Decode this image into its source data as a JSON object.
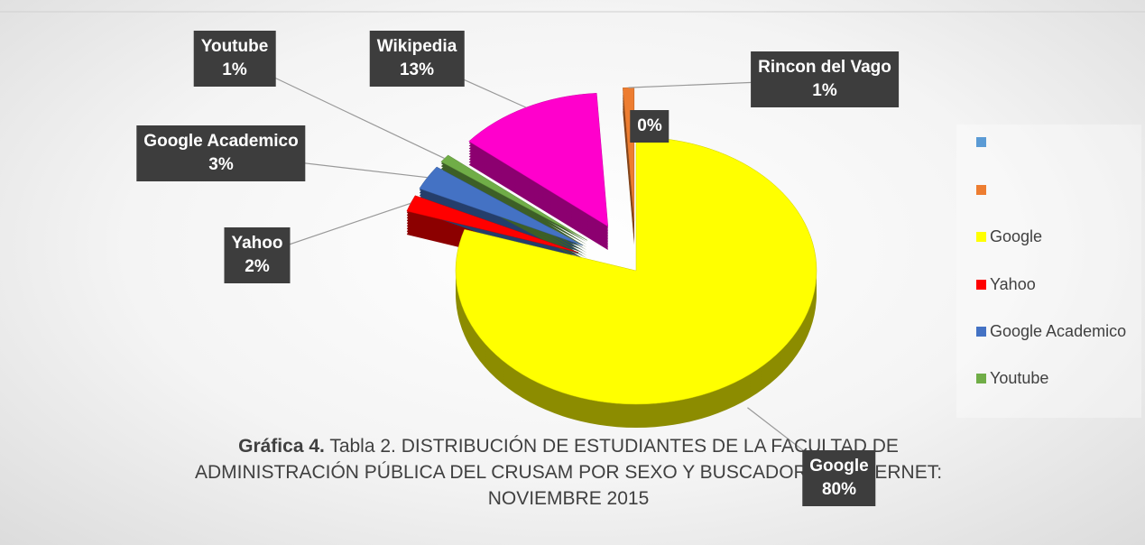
{
  "chart_data": {
    "type": "pie",
    "categories": [
      null,
      "Google",
      "Yahoo",
      "Google Academico",
      "Youtube",
      "Wikipedia",
      "Rincon del Vago"
    ],
    "values": [
      0,
      80,
      2,
      3,
      1,
      13,
      1
    ],
    "value_labels": [
      "0%",
      "80%",
      "2%",
      "3%",
      "1%",
      "13%",
      "1%"
    ],
    "colors": [
      "#5b9bd5",
      "#ffff00",
      "#ff0000",
      "#4472c4",
      "#70ad47",
      "#ff00cc",
      "#ed7d31"
    ],
    "legend": [
      {
        "name": null,
        "color": "#5b9bd5"
      },
      {
        "name": null,
        "color": "#ed7d31"
      },
      {
        "name": "Google",
        "color": "#ffff00"
      },
      {
        "name": "Yahoo",
        "color": "#ff0000"
      },
      {
        "name": "Google Academico",
        "color": "#4472c4"
      },
      {
        "name": "Youtube",
        "color": "#70ad47"
      }
    ],
    "caption_label": "Gráfica 4.",
    "caption_text": "Tabla 2. DISTRIBUCIÓN DE ESTUDIANTES DE LA FACULTAD DE ADMINISTRACIÓN PÚBLICA DEL CRUSAM POR SEXO Y BUSCADOR DE INTERNET: NOVIEMBRE 2015"
  }
}
